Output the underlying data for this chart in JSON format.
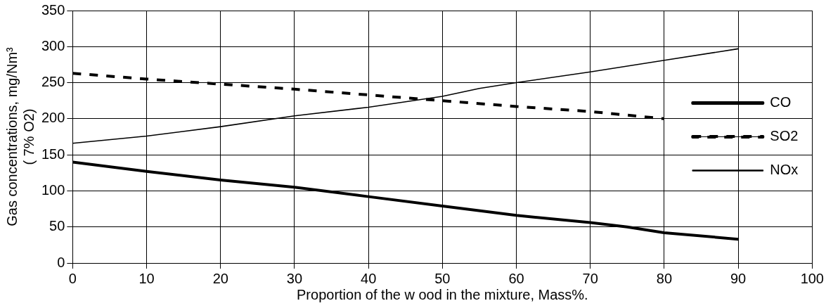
{
  "chart_data": {
    "type": "line",
    "xlabel": "Proportion of the w ood in the mixture, Mass%.",
    "ylabel": "Gas concentrations, mg/Nm³\n( 7% O2)",
    "xlim": [
      0,
      100
    ],
    "xticks": [
      0,
      10,
      20,
      30,
      40,
      50,
      60,
      70,
      80,
      90,
      100
    ],
    "ylim": [
      0,
      350
    ],
    "yticks": [
      0,
      50,
      100,
      150,
      200,
      250,
      300,
      350
    ],
    "grid": true,
    "legend": "right",
    "marker": "none",
    "series": [
      {
        "name": "CO",
        "color": "#000000",
        "line_style": "solid",
        "x": [
          0,
          10,
          20,
          30,
          40,
          50,
          60,
          70,
          75,
          80,
          90
        ],
        "values": [
          140,
          127,
          115,
          105,
          92,
          79,
          66,
          56,
          50,
          42,
          33
        ]
      },
      {
        "name": "SO2",
        "color": "#000000",
        "line_style": "dashed",
        "x": [
          0,
          10,
          20,
          30,
          40,
          50,
          60,
          70,
          80
        ],
        "values": [
          263,
          255,
          248,
          241,
          233,
          225,
          217,
          210,
          200
        ]
      },
      {
        "name": "NOx",
        "color": "#000000",
        "line_style": "solid",
        "x": [
          0,
          10,
          20,
          30,
          40,
          50,
          55,
          60,
          70,
          80,
          90
        ],
        "values": [
          166,
          176,
          189,
          204,
          216,
          231,
          242,
          250,
          265,
          281,
          297
        ]
      }
    ]
  }
}
